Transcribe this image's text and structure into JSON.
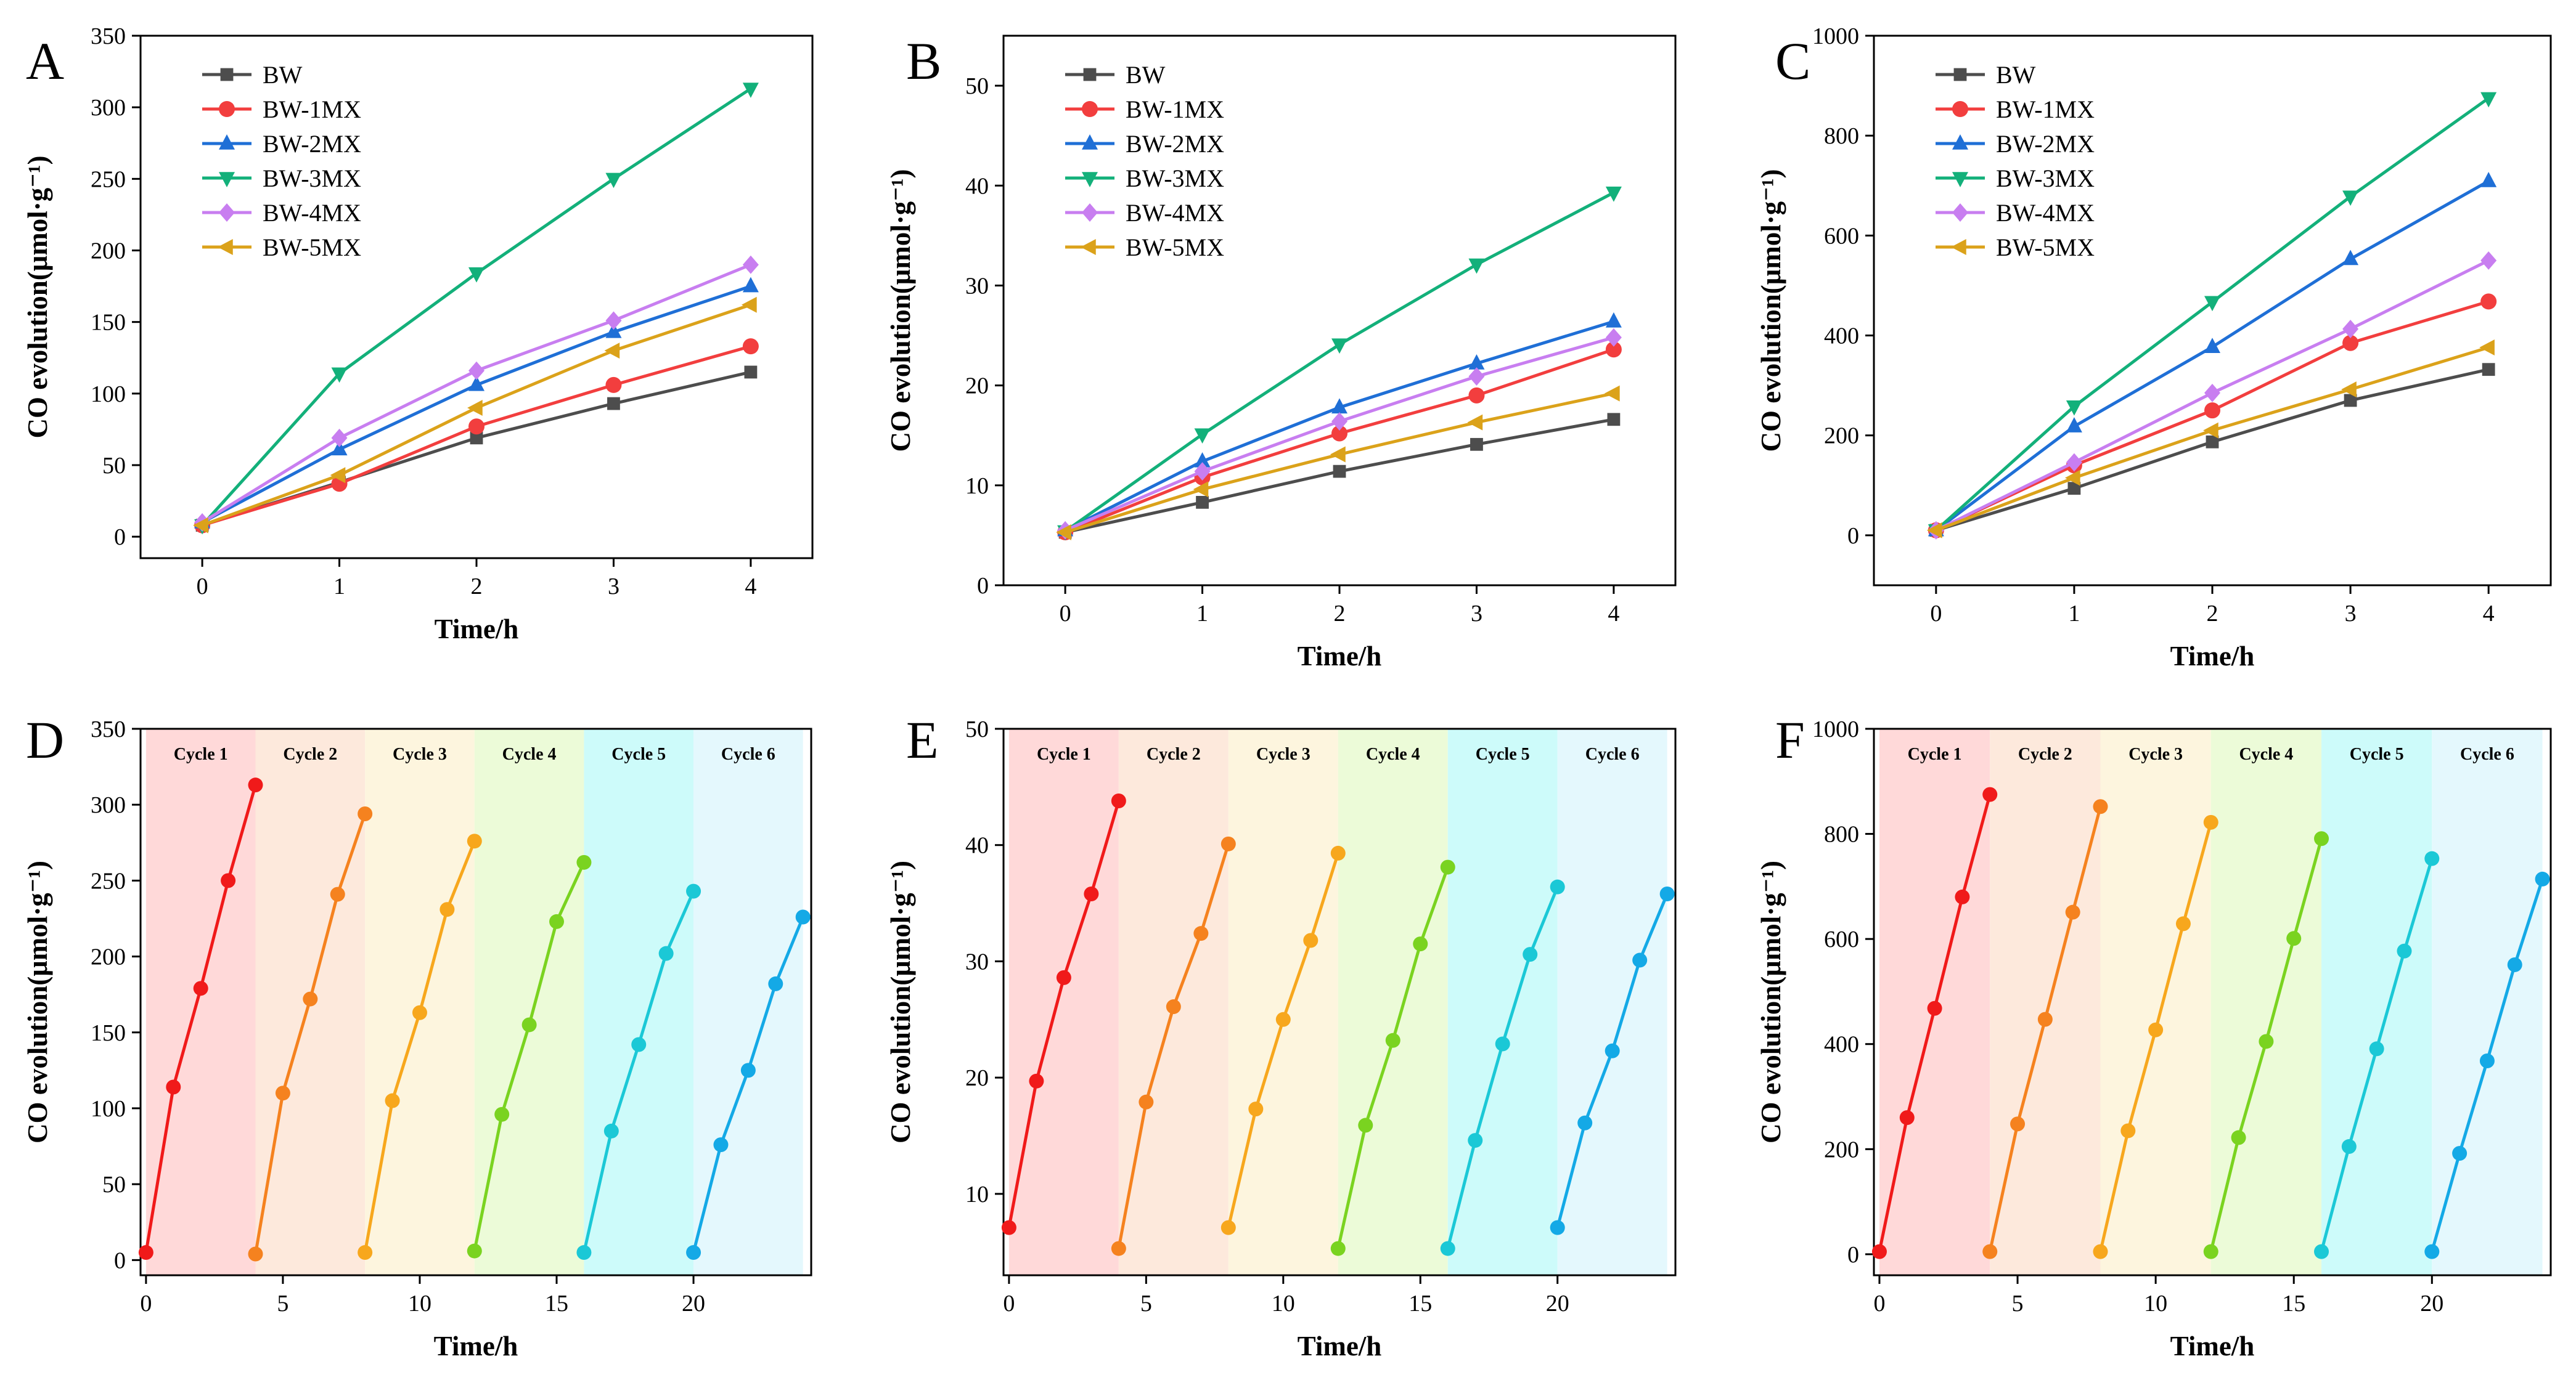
{
  "series_colors": {
    "BW": "#4d4d4d",
    "BW-1MX": "#f23e3e",
    "BW-2MX": "#1f6fd6",
    "BW-3MX": "#13b07a",
    "BW-4MX": "#c87ef0",
    "BW-5MX": "#dba21a"
  },
  "cycle_styles": [
    {
      "band": "#ffd9d9",
      "line": "#f01a1a"
    },
    {
      "band": "#fde9dc",
      "line": "#f5821f"
    },
    {
      "band": "#fdf5de",
      "line": "#f7a71d"
    },
    {
      "band": "#ecfbd8",
      "line": "#7ad320"
    },
    {
      "band": "#cdfbfa",
      "line": "#1bc8d6"
    },
    {
      "band": "#e4f8fd",
      "line": "#14a9e6"
    }
  ],
  "chart_data": [
    {
      "panel": "A",
      "type": "line",
      "xlabel": "Time/h",
      "ylabel": "CO evolution(μmol·g⁻¹)",
      "xlim": [
        -0.45,
        4.45
      ],
      "ylim": [
        -15,
        350
      ],
      "xticks": [
        0,
        1,
        2,
        3,
        4
      ],
      "yticks": [
        0,
        50,
        100,
        150,
        200,
        250,
        300,
        350
      ],
      "x": [
        0,
        1,
        2,
        3,
        4
      ],
      "legend_position": "top-left",
      "series": [
        {
          "name": "BW",
          "marker": "square",
          "values": [
            8,
            38,
            69,
            93,
            115
          ]
        },
        {
          "name": "BW-1MX",
          "marker": "circle",
          "values": [
            8,
            37,
            77,
            106,
            133
          ]
        },
        {
          "name": "BW-2MX",
          "marker": "triangle-up",
          "values": [
            10,
            61,
            106,
            143,
            175
          ]
        },
        {
          "name": "BW-3MX",
          "marker": "triangle-down",
          "values": [
            8,
            114,
            184,
            250,
            313
          ]
        },
        {
          "name": "BW-4MX",
          "marker": "diamond",
          "values": [
            10,
            69,
            116,
            151,
            190
          ]
        },
        {
          "name": "BW-5MX",
          "marker": "triangle-left",
          "values": [
            8,
            43,
            90,
            130,
            162
          ]
        }
      ]
    },
    {
      "panel": "B",
      "type": "line",
      "xlabel": "Time/h",
      "ylabel": "CO evolution(μmol·g⁻¹)",
      "xlim": [
        -0.45,
        4.45
      ],
      "ylim": [
        0,
        55
      ],
      "xticks": [
        0,
        1,
        2,
        3,
        4
      ],
      "yticks": [
        0,
        10,
        20,
        30,
        40,
        50
      ],
      "x": [
        0,
        1,
        2,
        3,
        4
      ],
      "legend_position": "top-left",
      "series": [
        {
          "name": "BW",
          "marker": "square",
          "values": [
            5.3,
            8.3,
            11.4,
            14.1,
            16.6
          ]
        },
        {
          "name": "BW-1MX",
          "marker": "circle",
          "values": [
            5.3,
            10.8,
            15.2,
            19.0,
            23.6
          ]
        },
        {
          "name": "BW-2MX",
          "marker": "triangle-up",
          "values": [
            5.5,
            12.4,
            17.8,
            22.2,
            26.4
          ]
        },
        {
          "name": "BW-3MX",
          "marker": "triangle-down",
          "values": [
            5.4,
            15.1,
            24.1,
            32.1,
            39.3
          ]
        },
        {
          "name": "BW-4MX",
          "marker": "diamond",
          "values": [
            5.5,
            11.4,
            16.4,
            20.9,
            24.8
          ]
        },
        {
          "name": "BW-5MX",
          "marker": "triangle-left",
          "values": [
            5.3,
            9.6,
            13.1,
            16.3,
            19.2
          ]
        }
      ]
    },
    {
      "panel": "C",
      "type": "line",
      "xlabel": "Time/h",
      "ylabel": "CO evolution(μmol·g⁻¹)",
      "xlim": [
        -0.45,
        4.45
      ],
      "ylim": [
        -100,
        1000
      ],
      "xticks": [
        0,
        1,
        2,
        3,
        4
      ],
      "yticks": [
        0,
        200,
        400,
        600,
        800,
        1000
      ],
      "x": [
        0,
        1,
        2,
        3,
        4
      ],
      "legend_position": "top-left",
      "series": [
        {
          "name": "BW",
          "marker": "square",
          "values": [
            10,
            94,
            187,
            270,
            332
          ]
        },
        {
          "name": "BW-1MX",
          "marker": "circle",
          "values": [
            10,
            140,
            250,
            385,
            468
          ]
        },
        {
          "name": "BW-2MX",
          "marker": "triangle-up",
          "values": [
            10,
            218,
            377,
            553,
            709
          ]
        },
        {
          "name": "BW-3MX",
          "marker": "triangle-down",
          "values": [
            10,
            258,
            467,
            678,
            875
          ]
        },
        {
          "name": "BW-4MX",
          "marker": "diamond",
          "values": [
            10,
            146,
            285,
            413,
            550
          ]
        },
        {
          "name": "BW-5MX",
          "marker": "triangle-left",
          "values": [
            10,
            115,
            210,
            292,
            376
          ]
        }
      ]
    },
    {
      "panel": "D",
      "type": "line",
      "xlabel": "Time/h",
      "ylabel": "CO evolution(μmol·g⁻¹)",
      "xlim": [
        -0.2,
        24.3
      ],
      "ylim": [
        -10,
        350
      ],
      "xticks": [
        0,
        5,
        10,
        15,
        20
      ],
      "yticks": [
        0,
        50,
        100,
        150,
        200,
        250,
        300,
        350
      ],
      "cycle_labels": [
        "Cycle 1",
        "Cycle 2",
        "Cycle 3",
        "Cycle 4",
        "Cycle 5",
        "Cycle 6"
      ],
      "series": [
        {
          "name": "Cycle 1",
          "x": [
            0,
            1,
            2,
            3,
            4
          ],
          "values": [
            5,
            114,
            179,
            250,
            313
          ]
        },
        {
          "name": "Cycle 2",
          "x": [
            4,
            5,
            6,
            7,
            8
          ],
          "values": [
            4,
            110,
            172,
            241,
            294
          ]
        },
        {
          "name": "Cycle 3",
          "x": [
            8,
            9,
            10,
            11,
            12
          ],
          "values": [
            5,
            105,
            163,
            231,
            276
          ]
        },
        {
          "name": "Cycle 4",
          "x": [
            12,
            13,
            14,
            15,
            16
          ],
          "values": [
            6,
            96,
            155,
            223,
            262
          ]
        },
        {
          "name": "Cycle 5",
          "x": [
            16,
            17,
            18,
            19,
            20
          ],
          "values": [
            5,
            85,
            142,
            202,
            243
          ]
        },
        {
          "name": "Cycle 6",
          "x": [
            20,
            21,
            22,
            23,
            24
          ],
          "values": [
            5,
            76,
            125,
            182,
            226
          ]
        }
      ]
    },
    {
      "panel": "E",
      "type": "line",
      "xlabel": "Time/h",
      "ylabel": "CO evolution(μmol·g⁻¹)",
      "xlim": [
        -0.2,
        24.3
      ],
      "ylim": [
        3,
        50
      ],
      "xticks": [
        0,
        5,
        10,
        15,
        20
      ],
      "yticks": [
        10,
        20,
        30,
        40,
        50
      ],
      "cycle_labels": [
        "Cycle 1",
        "Cycle 2",
        "Cycle 3",
        "Cycle 4",
        "Cycle 5",
        "Cycle 6"
      ],
      "series": [
        {
          "name": "Cycle 1",
          "x": [
            0,
            1,
            2,
            3,
            4
          ],
          "values": [
            7.1,
            19.7,
            28.6,
            35.8,
            43.8
          ]
        },
        {
          "name": "Cycle 2",
          "x": [
            4,
            5,
            6,
            7,
            8
          ],
          "values": [
            5.3,
            17.9,
            26.1,
            32.4,
            40.1
          ]
        },
        {
          "name": "Cycle 3",
          "x": [
            8,
            9,
            10,
            11,
            12
          ],
          "values": [
            7.1,
            17.3,
            25.0,
            31.8,
            39.3
          ]
        },
        {
          "name": "Cycle 4",
          "x": [
            12,
            13,
            14,
            15,
            16
          ],
          "values": [
            5.3,
            15.9,
            23.2,
            31.5,
            38.1
          ]
        },
        {
          "name": "Cycle 5",
          "x": [
            16,
            17,
            18,
            19,
            20
          ],
          "values": [
            5.3,
            14.6,
            22.9,
            30.6,
            36.4
          ]
        },
        {
          "name": "Cycle 6",
          "x": [
            20,
            21,
            22,
            23,
            24
          ],
          "values": [
            7.1,
            16.1,
            22.3,
            30.1,
            35.8
          ]
        }
      ]
    },
    {
      "panel": "F",
      "type": "line",
      "xlabel": "Time/h",
      "ylabel": "CO evolution(μmol·g⁻¹)",
      "xlim": [
        -0.2,
        24.3
      ],
      "ylim": [
        -40,
        1000
      ],
      "xticks": [
        0,
        5,
        10,
        15,
        20
      ],
      "yticks": [
        0,
        200,
        400,
        600,
        800,
        1000
      ],
      "cycle_labels": [
        "Cycle 1",
        "Cycle 2",
        "Cycle 3",
        "Cycle 4",
        "Cycle 5",
        "Cycle 6"
      ],
      "series": [
        {
          "name": "Cycle 1",
          "x": [
            0,
            1,
            2,
            3,
            4
          ],
          "values": [
            5,
            260,
            468,
            680,
            875
          ]
        },
        {
          "name": "Cycle 2",
          "x": [
            4,
            5,
            6,
            7,
            8
          ],
          "values": [
            5,
            248,
            447,
            651,
            852
          ]
        },
        {
          "name": "Cycle 3",
          "x": [
            8,
            9,
            10,
            11,
            12
          ],
          "values": [
            5,
            235,
            427,
            629,
            822
          ]
        },
        {
          "name": "Cycle 4",
          "x": [
            12,
            13,
            14,
            15,
            16
          ],
          "values": [
            5,
            222,
            405,
            601,
            791
          ]
        },
        {
          "name": "Cycle 5",
          "x": [
            16,
            17,
            18,
            19,
            20
          ],
          "values": [
            5,
            205,
            391,
            577,
            753
          ]
        },
        {
          "name": "Cycle 6",
          "x": [
            20,
            21,
            22,
            23,
            24
          ],
          "values": [
            5,
            192,
            368,
            551,
            714
          ]
        }
      ]
    }
  ]
}
